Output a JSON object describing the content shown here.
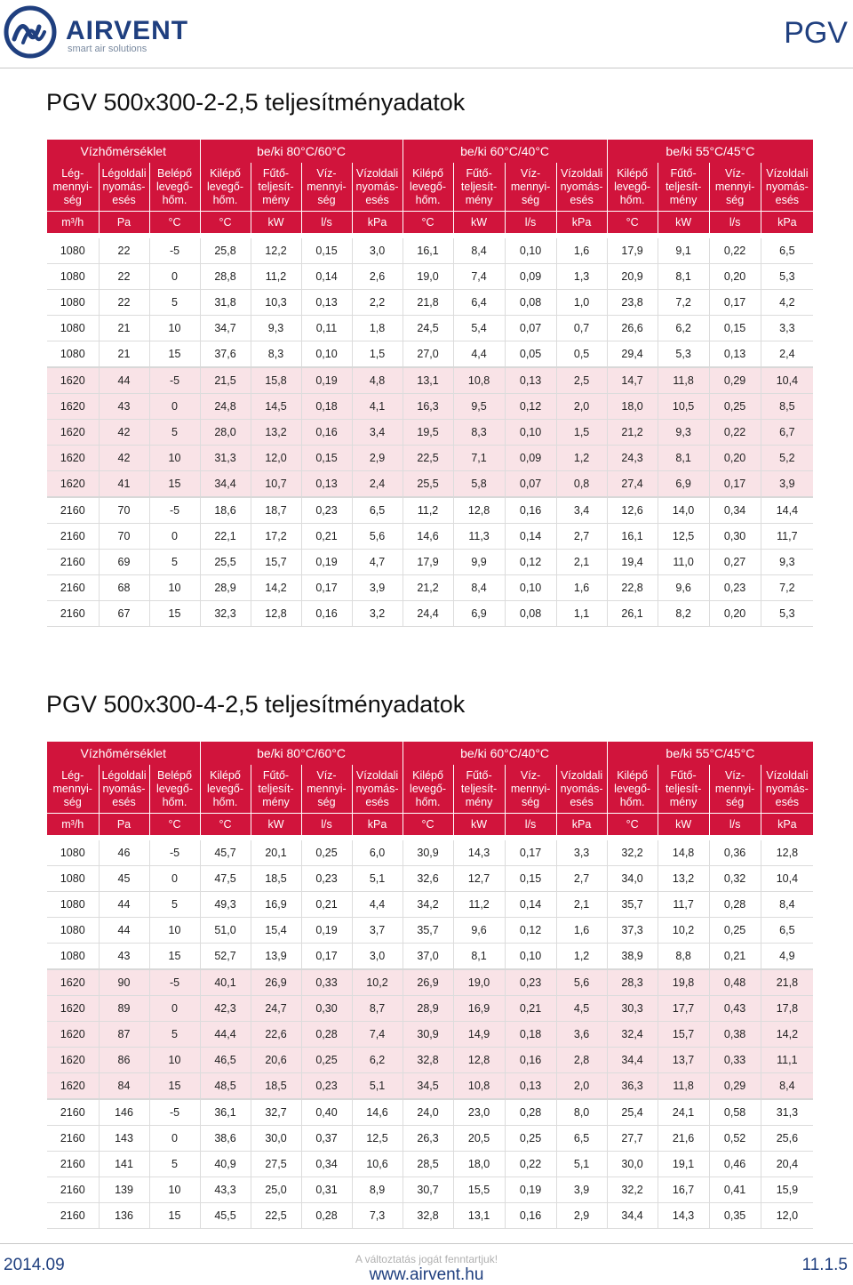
{
  "header": {
    "brand": "AIRVENT",
    "tagline": "smart air solutions",
    "product_code": "PGV"
  },
  "columns": {
    "group_labels": [
      "Vízhőmérséklet",
      "be/ki 80°C/60°C",
      "be/ki 60°C/40°C",
      "be/ki 55°C/45°C"
    ],
    "labels": [
      "Lég-\nmennyi-\nség",
      "Légoldali\nnyomás-\nesés",
      "Belépő\nlevegő-\nhőm.",
      "Kilépő\nlevegő-\nhőm.",
      "Fűtő-\nteljesít-\nmény",
      "Víz-\nmennyi-\nség",
      "Vízoldali\nnyomás-\nesés",
      "Kilépő\nlevegő-\nhőm.",
      "Fűtő-\nteljesít-\nmény",
      "Víz-\nmennyi-\nség",
      "Vízoldali\nnyomás-\nesés",
      "Kilépő\nlevegő-\nhőm.",
      "Fűtő-\nteljesít-\nmény",
      "Víz-\nmennyi-\nség",
      "Vízoldali\nnyomás-\nesés"
    ],
    "units": [
      "m³/h",
      "Pa",
      "°C",
      "°C",
      "kW",
      "l/s",
      "kPa",
      "°C",
      "kW",
      "l/s",
      "kPa",
      "°C",
      "kW",
      "l/s",
      "kPa"
    ]
  },
  "tables": [
    {
      "title": "PGV 500x300-2-2,5 teljesítményadatok",
      "rows": [
        [
          "1080",
          "22",
          "-5",
          "25,8",
          "12,2",
          "0,15",
          "3,0",
          "16,1",
          "8,4",
          "0,10",
          "1,6",
          "17,9",
          "9,1",
          "0,22",
          "6,5"
        ],
        [
          "1080",
          "22",
          "0",
          "28,8",
          "11,2",
          "0,14",
          "2,6",
          "19,0",
          "7,4",
          "0,09",
          "1,3",
          "20,9",
          "8,1",
          "0,20",
          "5,3"
        ],
        [
          "1080",
          "22",
          "5",
          "31,8",
          "10,3",
          "0,13",
          "2,2",
          "21,8",
          "6,4",
          "0,08",
          "1,0",
          "23,8",
          "7,2",
          "0,17",
          "4,2"
        ],
        [
          "1080",
          "21",
          "10",
          "34,7",
          "9,3",
          "0,11",
          "1,8",
          "24,5",
          "5,4",
          "0,07",
          "0,7",
          "26,6",
          "6,2",
          "0,15",
          "3,3"
        ],
        [
          "1080",
          "21",
          "15",
          "37,6",
          "8,3",
          "0,10",
          "1,5",
          "27,0",
          "4,4",
          "0,05",
          "0,5",
          "29,4",
          "5,3",
          "0,13",
          "2,4"
        ],
        [
          "1620",
          "44",
          "-5",
          "21,5",
          "15,8",
          "0,19",
          "4,8",
          "13,1",
          "10,8",
          "0,13",
          "2,5",
          "14,7",
          "11,8",
          "0,29",
          "10,4"
        ],
        [
          "1620",
          "43",
          "0",
          "24,8",
          "14,5",
          "0,18",
          "4,1",
          "16,3",
          "9,5",
          "0,12",
          "2,0",
          "18,0",
          "10,5",
          "0,25",
          "8,5"
        ],
        [
          "1620",
          "42",
          "5",
          "28,0",
          "13,2",
          "0,16",
          "3,4",
          "19,5",
          "8,3",
          "0,10",
          "1,5",
          "21,2",
          "9,3",
          "0,22",
          "6,7"
        ],
        [
          "1620",
          "42",
          "10",
          "31,3",
          "12,0",
          "0,15",
          "2,9",
          "22,5",
          "7,1",
          "0,09",
          "1,2",
          "24,3",
          "8,1",
          "0,20",
          "5,2"
        ],
        [
          "1620",
          "41",
          "15",
          "34,4",
          "10,7",
          "0,13",
          "2,4",
          "25,5",
          "5,8",
          "0,07",
          "0,8",
          "27,4",
          "6,9",
          "0,17",
          "3,9"
        ],
        [
          "2160",
          "70",
          "-5",
          "18,6",
          "18,7",
          "0,23",
          "6,5",
          "11,2",
          "12,8",
          "0,16",
          "3,4",
          "12,6",
          "14,0",
          "0,34",
          "14,4"
        ],
        [
          "2160",
          "70",
          "0",
          "22,1",
          "17,2",
          "0,21",
          "5,6",
          "14,6",
          "11,3",
          "0,14",
          "2,7",
          "16,1",
          "12,5",
          "0,30",
          "11,7"
        ],
        [
          "2160",
          "69",
          "5",
          "25,5",
          "15,7",
          "0,19",
          "4,7",
          "17,9",
          "9,9",
          "0,12",
          "2,1",
          "19,4",
          "11,0",
          "0,27",
          "9,3"
        ],
        [
          "2160",
          "68",
          "10",
          "28,9",
          "14,2",
          "0,17",
          "3,9",
          "21,2",
          "8,4",
          "0,10",
          "1,6",
          "22,8",
          "9,6",
          "0,23",
          "7,2"
        ],
        [
          "2160",
          "67",
          "15",
          "32,3",
          "12,8",
          "0,16",
          "3,2",
          "24,4",
          "6,9",
          "0,08",
          "1,1",
          "26,1",
          "8,2",
          "0,20",
          "5,3"
        ]
      ]
    },
    {
      "title": "PGV 500x300-4-2,5 teljesítményadatok",
      "rows": [
        [
          "1080",
          "46",
          "-5",
          "45,7",
          "20,1",
          "0,25",
          "6,0",
          "30,9",
          "14,3",
          "0,17",
          "3,3",
          "32,2",
          "14,8",
          "0,36",
          "12,8"
        ],
        [
          "1080",
          "45",
          "0",
          "47,5",
          "18,5",
          "0,23",
          "5,1",
          "32,6",
          "12,7",
          "0,15",
          "2,7",
          "34,0",
          "13,2",
          "0,32",
          "10,4"
        ],
        [
          "1080",
          "44",
          "5",
          "49,3",
          "16,9",
          "0,21",
          "4,4",
          "34,2",
          "11,2",
          "0,14",
          "2,1",
          "35,7",
          "11,7",
          "0,28",
          "8,4"
        ],
        [
          "1080",
          "44",
          "10",
          "51,0",
          "15,4",
          "0,19",
          "3,7",
          "35,7",
          "9,6",
          "0,12",
          "1,6",
          "37,3",
          "10,2",
          "0,25",
          "6,5"
        ],
        [
          "1080",
          "43",
          "15",
          "52,7",
          "13,9",
          "0,17",
          "3,0",
          "37,0",
          "8,1",
          "0,10",
          "1,2",
          "38,9",
          "8,8",
          "0,21",
          "4,9"
        ],
        [
          "1620",
          "90",
          "-5",
          "40,1",
          "26,9",
          "0,33",
          "10,2",
          "26,9",
          "19,0",
          "0,23",
          "5,6",
          "28,3",
          "19,8",
          "0,48",
          "21,8"
        ],
        [
          "1620",
          "89",
          "0",
          "42,3",
          "24,7",
          "0,30",
          "8,7",
          "28,9",
          "16,9",
          "0,21",
          "4,5",
          "30,3",
          "17,7",
          "0,43",
          "17,8"
        ],
        [
          "1620",
          "87",
          "5",
          "44,4",
          "22,6",
          "0,28",
          "7,4",
          "30,9",
          "14,9",
          "0,18",
          "3,6",
          "32,4",
          "15,7",
          "0,38",
          "14,2"
        ],
        [
          "1620",
          "86",
          "10",
          "46,5",
          "20,6",
          "0,25",
          "6,2",
          "32,8",
          "12,8",
          "0,16",
          "2,8",
          "34,4",
          "13,7",
          "0,33",
          "11,1"
        ],
        [
          "1620",
          "84",
          "15",
          "48,5",
          "18,5",
          "0,23",
          "5,1",
          "34,5",
          "10,8",
          "0,13",
          "2,0",
          "36,3",
          "11,8",
          "0,29",
          "8,4"
        ],
        [
          "2160",
          "146",
          "-5",
          "36,1",
          "32,7",
          "0,40",
          "14,6",
          "24,0",
          "23,0",
          "0,28",
          "8,0",
          "25,4",
          "24,1",
          "0,58",
          "31,3"
        ],
        [
          "2160",
          "143",
          "0",
          "38,6",
          "30,0",
          "0,37",
          "12,5",
          "26,3",
          "20,5",
          "0,25",
          "6,5",
          "27,7",
          "21,6",
          "0,52",
          "25,6"
        ],
        [
          "2160",
          "141",
          "5",
          "40,9",
          "27,5",
          "0,34",
          "10,6",
          "28,5",
          "18,0",
          "0,22",
          "5,1",
          "30,0",
          "19,1",
          "0,46",
          "20,4"
        ],
        [
          "2160",
          "139",
          "10",
          "43,3",
          "25,0",
          "0,31",
          "8,9",
          "30,7",
          "15,5",
          "0,19",
          "3,9",
          "32,2",
          "16,7",
          "0,41",
          "15,9"
        ],
        [
          "2160",
          "136",
          "15",
          "45,5",
          "22,5",
          "0,28",
          "7,3",
          "32,8",
          "13,1",
          "0,16",
          "2,9",
          "34,4",
          "14,3",
          "0,35",
          "12,0"
        ]
      ]
    }
  ],
  "footer": {
    "date": "2014.09",
    "note": "A változtatás jogát fenntartjuk!",
    "url": "www.airvent.hu",
    "page": "11.1.5"
  },
  "colors": {
    "accent": "#d1143c",
    "brand": "#1f3f7f",
    "row_tint": "#f9e3e7"
  }
}
